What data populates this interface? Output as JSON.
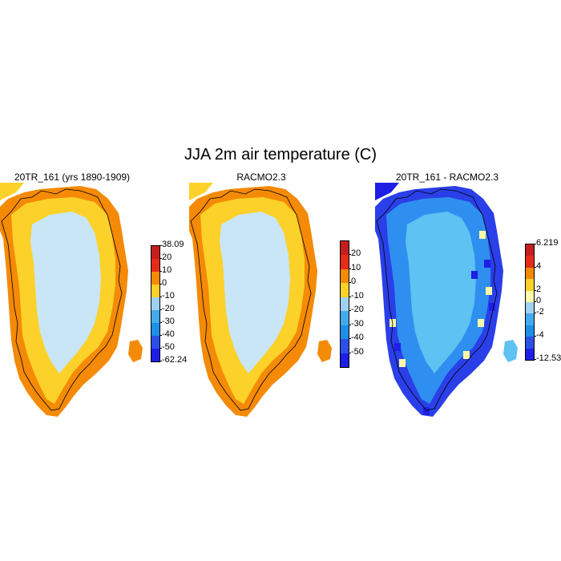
{
  "title": "JJA 2m air temperature (C)",
  "panels": [
    {
      "title": "20TR_161 (yrs 1890-1909)",
      "colorbar": {
        "colors": [
          "#1e1ee6",
          "#2b50e8",
          "#1f8ee8",
          "#43aaee",
          "#9fd1f0",
          "#fcd12a",
          "#f48a05",
          "#e62b1a",
          "#c61e1e"
        ],
        "labels": [
          "-62.24",
          "-50",
          "-40",
          "-30",
          "-20",
          "-10",
          "0",
          "10",
          "20",
          "38.09"
        ]
      }
    },
    {
      "title": "RACMO2.3",
      "colorbar": {
        "colors": [
          "#1e1ee6",
          "#2b50e8",
          "#1f8ee8",
          "#43aaee",
          "#9fd1f0",
          "#fcd12a",
          "#f48a05",
          "#e62b1a",
          "#c61e1e"
        ],
        "labels": [
          "",
          "-50",
          "-40",
          "-30",
          "-20",
          "-10",
          "0",
          "10",
          "20",
          ""
        ]
      }
    },
    {
      "title": "20TR_161 - RACMO2.3",
      "colorbar": {
        "colors": [
          "#1e1ee6",
          "#2b50e8",
          "#1f8ee8",
          "#43aaee",
          "#9fd1f0",
          "#fff8a8",
          "#fcd12a",
          "#f48a05",
          "#e62b1a",
          "#c61e1e"
        ],
        "labels": [
          "-12.533",
          "",
          "-4",
          "",
          "-2",
          "0",
          "2",
          "",
          "4",
          "",
          "6.219"
        ]
      }
    }
  ],
  "colors": {
    "ice_interior": "#c8e6f5",
    "margin_yellow": "#fcd12a",
    "margin_orange": "#f48a05",
    "diff_interior": "#5ec2f2",
    "diff_mid": "#2f8ff0",
    "diff_edge": "#2a3fe8",
    "diff_deep": "#1e1ee6",
    "coast_line": "#000000"
  }
}
